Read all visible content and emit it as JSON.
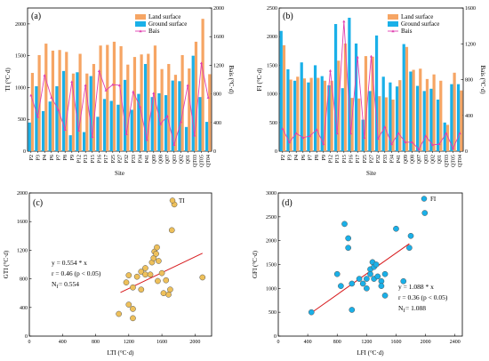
{
  "chart_data": [
    {
      "type": "bar",
      "panel_label": "(a)",
      "categories": [
        "P2",
        "P3",
        "P4",
        "P6",
        "P7",
        "P8",
        "P9",
        "P12",
        "P13",
        "P15",
        "P16",
        "P17",
        "P25",
        "P27",
        "P32",
        "P33",
        "P34",
        "P41",
        "Q09",
        "Q08",
        "Q07",
        "Q03",
        "Q02",
        "Q01",
        "QT03",
        "QT05",
        "QT04"
      ],
      "series": [
        {
          "name": "Land surface",
          "axis": "left",
          "color": "#F6A564",
          "values": [
            1230,
            1510,
            1690,
            1580,
            1590,
            1560,
            1220,
            1530,
            1220,
            1370,
            1660,
            1670,
            1720,
            1650,
            1360,
            1480,
            1520,
            1530,
            1660,
            1290,
            1370,
            1200,
            1510,
            1300,
            1720,
            2080,
            1210
          ]
        },
        {
          "name": "Ground surface",
          "axis": "left",
          "color": "#1AB0E8",
          "values": [
            450,
            1020,
            630,
            780,
            1020,
            1260,
            250,
            1240,
            300,
            1180,
            540,
            820,
            790,
            730,
            1120,
            650,
            900,
            1370,
            850,
            910,
            880,
            1110,
            1100,
            380,
            1500,
            850,
            460
          ]
        },
        {
          "name": "Bais",
          "axis": "right",
          "type": "line",
          "color": "#E040B0",
          "values": [
            780,
            480,
            1060,
            750,
            580,
            300,
            970,
            290,
            920,
            200,
            1120,
            850,
            930,
            920,
            240,
            830,
            620,
            160,
            810,
            380,
            490,
            90,
            410,
            920,
            220,
            1230,
            750
          ]
        }
      ],
      "ylabel": "TI (°C·d)",
      "y2label": "Bais (°C·d)",
      "xlabel": "Site",
      "ylim": [
        0,
        2250
      ],
      "y2lim": [
        0,
        2000
      ],
      "yticks": [
        0,
        500,
        1000,
        1500,
        2000
      ],
      "y2ticks": [
        0,
        400,
        800,
        1200,
        1600,
        2000
      ],
      "legend": "top-right"
    },
    {
      "type": "bar",
      "panel_label": "(b)",
      "categories": [
        "P2",
        "P3",
        "P4",
        "P6",
        "P7",
        "P8",
        "P9",
        "P12",
        "P13",
        "P15",
        "P16",
        "P17",
        "P25",
        "P27",
        "P32",
        "P33",
        "P34",
        "P41",
        "Q09",
        "Q08",
        "Q07",
        "Q03",
        "Q02",
        "Q01",
        "QT03",
        "QT05",
        "QT04"
      ],
      "series": [
        {
          "name": "Land surface",
          "axis": "left",
          "color": "#F6A564",
          "values": [
            1850,
            1250,
            1300,
            1270,
            1280,
            1280,
            1230,
            1230,
            1580,
            1880,
            930,
            920,
            1660,
            1650,
            960,
            940,
            900,
            1240,
            1820,
            1420,
            1440,
            1260,
            1340,
            1230,
            460,
            1370,
            1060
          ]
        },
        {
          "name": "Ground surface",
          "axis": "left",
          "color": "#1AB0E8",
          "values": [
            2100,
            1430,
            1230,
            1550,
            1200,
            1500,
            1310,
            1150,
            2220,
            1100,
            2330,
            1880,
            550,
            1050,
            2020,
            1300,
            1200,
            1130,
            1870,
            1390,
            1140,
            1050,
            1090,
            900,
            500,
            1170,
            1170
          ]
        },
        {
          "name": "Bais",
          "axis": "right",
          "type": "line",
          "color": "#E040B0",
          "values": [
            250,
            100,
            200,
            150,
            170,
            240,
            80,
            900,
            200,
            1450,
            200,
            1050,
            150,
            1060,
            140,
            270,
            80,
            200,
            100,
            100,
            20,
            170,
            70,
            80,
            200,
            30,
            200
          ]
        }
      ],
      "ylabel": "FI (°C·d)",
      "y2label": "Bais (°C·d)",
      "xlabel": "Site",
      "ylim": [
        0,
        2500
      ],
      "y2lim": [
        0,
        1600
      ],
      "yticks": [
        0,
        500,
        1000,
        1500,
        2000,
        2500
      ],
      "y2ticks": [
        0,
        400,
        800,
        1200,
        1600
      ],
      "legend": "top-right"
    },
    {
      "type": "scatter",
      "panel_label": "(c)",
      "series": [
        {
          "name": "TI",
          "color": "#EEC05A",
          "points": [
            [
              1080,
              310
            ],
            [
              1200,
              440
            ],
            [
              1250,
              380
            ],
            [
              1250,
              250
            ],
            [
              1170,
              750
            ],
            [
              1200,
              850
            ],
            [
              1250,
              680
            ],
            [
              1300,
              830
            ],
            [
              1350,
              900
            ],
            [
              1400,
              950
            ],
            [
              1350,
              650
            ],
            [
              1400,
              860
            ],
            [
              1460,
              860
            ],
            [
              1480,
              1030
            ],
            [
              1500,
              1090
            ],
            [
              1510,
              1180
            ],
            [
              1540,
              1240
            ],
            [
              1530,
              1150
            ],
            [
              1560,
              1050
            ],
            [
              1550,
              770
            ],
            [
              1600,
              880
            ],
            [
              1650,
              780
            ],
            [
              1680,
              580
            ],
            [
              1620,
              600
            ],
            [
              1700,
              650
            ],
            [
              1720,
              1480
            ],
            [
              1750,
              1840
            ],
            [
              2090,
              820
            ]
          ]
        }
      ],
      "fit": {
        "slope": 0.554,
        "x0": 1100,
        "x1": 2090
      },
      "annotations": [
        "y = 0.554 * x",
        "r = 0.46 (p < 0.05)",
        "N",
        "f",
        " = 0.554"
      ],
      "xlabel": "LTI (°C·d)",
      "ylabel": "GTI (°C·d)",
      "xlim": [
        0,
        2200
      ],
      "ylim": [
        0,
        2000
      ],
      "xticks": [
        0,
        400,
        800,
        1200,
        1600,
        2000
      ],
      "yticks": [
        0,
        400,
        800,
        1200,
        1600,
        2000
      ],
      "legend": "top-right"
    },
    {
      "type": "scatter",
      "panel_label": "(d)",
      "series": [
        {
          "name": "FI",
          "color": "#1AB0E8",
          "points": [
            [
              450,
              500
            ],
            [
              800,
              1300
            ],
            [
              900,
              2350
            ],
            [
              950,
              2050
            ],
            [
              950,
              1850
            ],
            [
              850,
              1050
            ],
            [
              1000,
              550
            ],
            [
              1000,
              1100
            ],
            [
              1100,
              1200
            ],
            [
              1150,
              1100
            ],
            [
              1200,
              1000
            ],
            [
              1200,
              1200
            ],
            [
              1250,
              1400
            ],
            [
              1250,
              1300
            ],
            [
              1280,
              1550
            ],
            [
              1300,
              1450
            ],
            [
              1300,
              1200
            ],
            [
              1330,
              1500
            ],
            [
              1350,
              1250
            ],
            [
              1400,
              1150
            ],
            [
              1400,
              1050
            ],
            [
              1450,
              850
            ],
            [
              1450,
              1300
            ],
            [
              1600,
              2250
            ],
            [
              1700,
              1150
            ],
            [
              1780,
              1850
            ],
            [
              1800,
              2100
            ],
            [
              1990,
              2580
            ]
          ]
        }
      ],
      "fit": {
        "slope": 1.088,
        "x0": 450,
        "x1": 1780
      },
      "annotations": [
        "y = 1.088 * x",
        "r = 0.36 (p < 0.05)",
        "N",
        "f",
        " = 1.088"
      ],
      "xlabel": "LFI (°C·d)",
      "ylabel": "GFI (°C·d)",
      "xlim": [
        0,
        2500
      ],
      "ylim": [
        0,
        3000
      ],
      "xticks": [
        0,
        400,
        800,
        1200,
        1600,
        2000,
        2400
      ],
      "yticks": [
        0,
        500,
        1000,
        1500,
        2000,
        2500,
        3000
      ],
      "legend": "top-right"
    }
  ]
}
